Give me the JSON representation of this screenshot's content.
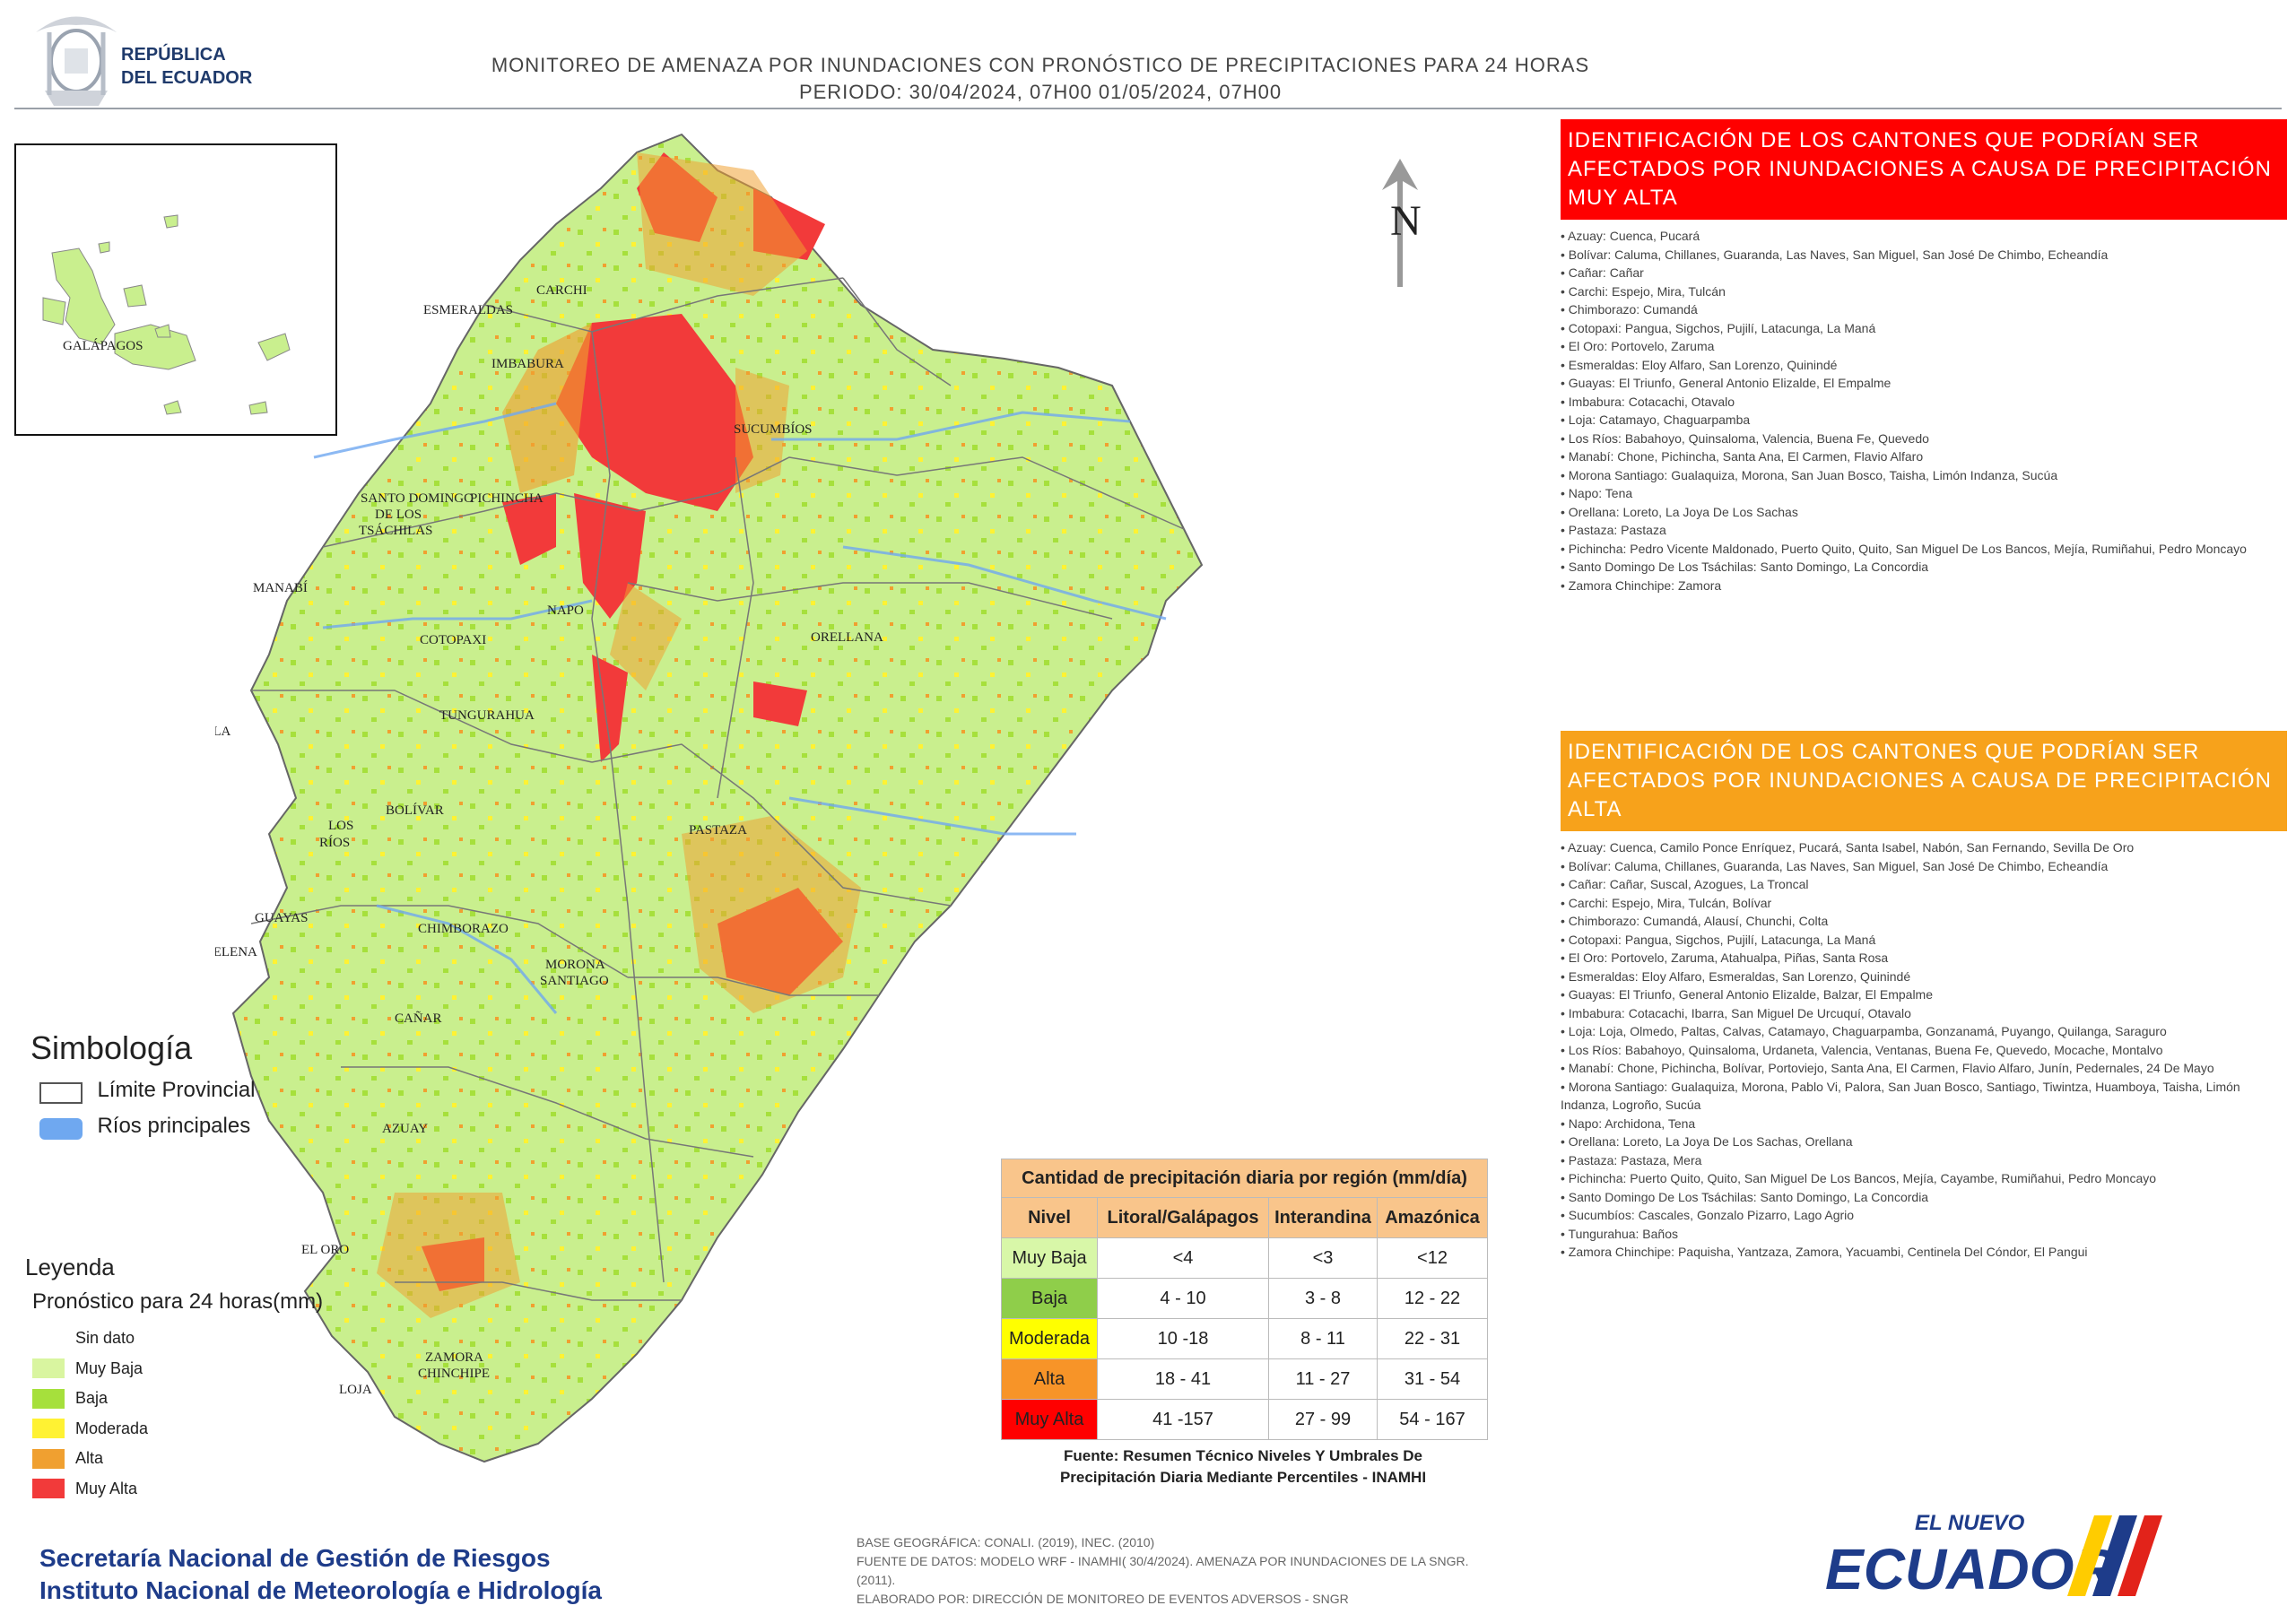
{
  "header": {
    "title_line1": "MONITOREO DE AMENAZA POR INUNDACIONES  CON PRONÓSTICO DE  PRECIPITACIONES PARA 24 HORAS",
    "title_line2": "PERIODO: 30/04/2024, 07H00 01/05/2024, 07H00",
    "logo_line1": "REPÚBLICA",
    "logo_line2": "DEL ECUADOR"
  },
  "map": {
    "north": "N",
    "inset_label": "GALÁPAGOS",
    "provinces": [
      "CARCHI",
      "ESMERALDAS",
      "IMBABURA",
      "SUCUMBÍOS",
      "SANTO DOMINGO",
      "DE LOS",
      "TSÁCHILAS",
      "PICHINCHA",
      "MANABÍ",
      "NAPO",
      "COTOPAXI",
      "ORELLANA",
      "ISLA",
      "TUNGURAHUA",
      "BOLÍVAR",
      "LOS",
      "RÍOS",
      "PASTAZA",
      "GUAYAS",
      "CHIMBORAZO",
      "SANTA ELENA",
      "MORONA",
      "SANTIAGO",
      "CAÑAR",
      "AZUAY",
      "EL ORO",
      "ZAMORA",
      "CHINCHIPE",
      "LOJA"
    ]
  },
  "panel_muy_alta": {
    "title": "IDENTIFICACIÓN DE LOS CANTONES QUE PODRÍAN SER AFECTADOS POR INUNDACIONES  A CAUSA DE PRECIPITACIÓN MUY ALTA",
    "color": "#ff0000",
    "items": [
      "• Azuay: Cuenca, Pucará",
      "• Bolívar: Caluma, Chillanes, Guaranda, Las Naves, San Miguel, San José De Chimbo, Echeandía",
      "• Cañar: Cañar",
      "• Carchi: Espejo, Mira, Tulcán",
      "• Chimborazo: Cumandá",
      "• Cotopaxi: Pangua, Sigchos, Pujilí, Latacunga, La Maná",
      "• El Oro: Portovelo, Zaruma",
      "• Esmeraldas: Eloy Alfaro, San Lorenzo, Quinindé",
      "• Guayas: El Triunfo, General Antonio Elizalde, El Empalme",
      "• Imbabura: Cotacachi, Otavalo",
      "• Loja: Catamayo, Chaguarpamba",
      "• Los Ríos: Babahoyo, Quinsaloma, Valencia, Buena Fe, Quevedo",
      "• Manabí: Chone, Pichincha, Santa Ana, El Carmen, Flavio Alfaro",
      "• Morona Santiago: Gualaquiza, Morona, San Juan Bosco, Taisha, Limón Indanza, Sucúa",
      "• Napo: Tena",
      "• Orellana: Loreto, La Joya De Los Sachas",
      "• Pastaza: Pastaza",
      "• Pichincha: Pedro Vicente Maldonado, Puerto Quito, Quito, San Miguel De Los Bancos, Mejía, Rumiñahui, Pedro Moncayo",
      "• Santo Domingo De Los Tsáchilas: Santo Domingo, La Concordia",
      "• Zamora Chinchipe: Zamora"
    ]
  },
  "panel_alta": {
    "title": "IDENTIFICACIÓN DE LOS CANTONES QUE  PODRÍAN SER AFECTADOS POR INUNDACIONES  A CAUSA DE PRECIPITACIÓN  ALTA",
    "color": "#f7a21b",
    "items": [
      "• Azuay: Cuenca, Camilo Ponce Enríquez, Pucará, Santa Isabel, Nabón, San Fernando, Sevilla De Oro",
      "• Bolívar: Caluma, Chillanes, Guaranda, Las Naves, San Miguel, San José De Chimbo, Echeandía",
      "• Cañar: Cañar, Suscal, Azogues, La Troncal",
      "• Carchi: Espejo, Mira, Tulcán, Bolívar",
      "• Chimborazo: Cumandá, Alausí, Chunchi, Colta",
      "• Cotopaxi: Pangua, Sigchos, Pujilí, Latacunga, La Maná",
      "• El Oro: Portovelo, Zaruma, Atahualpa, Piñas, Santa Rosa",
      "• Esmeraldas: Eloy Alfaro, Esmeraldas, San Lorenzo, Quinindé",
      "• Guayas: El Triunfo, General Antonio Elizalde, Balzar, El Empalme",
      "• Imbabura: Cotacachi, Ibarra, San Miguel De Urcuquí, Otavalo",
      "• Loja: Loja, Olmedo, Paltas, Calvas, Catamayo, Chaguarpamba, Gonzanamá, Puyango, Quilanga, Saraguro",
      "• Los Ríos: Babahoyo, Quinsaloma, Urdaneta, Valencia, Ventanas, Buena Fe, Quevedo, Mocache, Montalvo",
      "• Manabí: Chone, Pichincha, Bolívar, Portoviejo, Santa Ana, El Carmen, Flavio Alfaro, Junín, Pedernales, 24 De Mayo",
      "• Morona Santiago: Gualaquiza, Morona, Pablo Vi, Palora, San Juan Bosco, Santiago, Tiwintza, Huamboya, Taisha, Limón Indanza, Logroño, Sucúa",
      "• Napo: Archidona, Tena",
      "• Orellana: Loreto, La Joya De Los Sachas, Orellana",
      "• Pastaza: Pastaza, Mera",
      "• Pichincha: Puerto Quito, Quito, San Miguel De Los Bancos, Mejía, Cayambe, Rumiñahui, Pedro Moncayo",
      "• Santo Domingo De Los Tsáchilas: Santo Domingo, La Concordia",
      "• Sucumbíos: Cascales, Gonzalo Pizarro, Lago Agrio",
      "• Tungurahua: Baños",
      "• Zamora Chinchipe: Paquisha, Yantzaza, Zamora, Yacuambi, Centinela Del Cóndor, El Pangui"
    ]
  },
  "simbologia": {
    "title": "Simbología",
    "limite": "Límite Provincial",
    "rios": "Ríos principales",
    "rios_color": "#6fa8f0"
  },
  "leyenda": {
    "title": "Leyenda",
    "subtitle": "Pronóstico para 24 horas(mm)",
    "items": [
      {
        "label": "Sin dato",
        "color": "#ffffff"
      },
      {
        "label": "Muy Baja",
        "color": "#d9f5a0"
      },
      {
        "label": "Baja",
        "color": "#a6e03c"
      },
      {
        "label": "Moderada",
        "color": "#fff233"
      },
      {
        "label": "Alta",
        "color": "#f0a030"
      },
      {
        "label": "Muy Alta",
        "color": "#f23a3a"
      }
    ]
  },
  "precip_table": {
    "title": "Cantidad de precipitación diaria por región (mm/día)",
    "headers": [
      "Nivel",
      "Litoral/Galápagos",
      "Interandina",
      "Amazónica"
    ],
    "rows": [
      {
        "nivel": "Muy Baja",
        "color": "#d8f7a8",
        "lit": "<4",
        "int": "<3",
        "ama": "<12"
      },
      {
        "nivel": "Baja",
        "color": "#8fce4a",
        "lit": "4 - 10",
        "int": "3 - 8",
        "ama": "12 - 22"
      },
      {
        "nivel": "Moderada",
        "color": "#ffff00",
        "lit": "10 -18",
        "int": "8 - 11",
        "ama": "22 - 31"
      },
      {
        "nivel": "Alta",
        "color": "#f79428",
        "lit": "18 - 41",
        "int": "11 - 27",
        "ama": "31 - 54"
      },
      {
        "nivel": "Muy Alta",
        "color": "#ff0000",
        "lit": "41 -157",
        "int": "27 - 99",
        "ama": "54 - 167"
      }
    ],
    "source_line1": "Fuente: Resumen Técnico Niveles Y Umbrales De",
    "source_line2": "Precipitación Diaria Mediante Percentiles - INAMHI"
  },
  "footer": {
    "org1": "Secretaría Nacional de Gestión de Riesgos",
    "org2": "Instituto Nacional de Meteorología e Hidrología",
    "credit1": "BASE GEOGRÁFICA: CONALI. (2019), INEC. (2010)",
    "credit2": "FUENTE DE DATOS: MODELO WRF - INAMHI( 30/4/2024).  AMENAZA POR INUNDACIONES DE LA SNGR. (2011).",
    "credit3": "ELABORADO POR: DIRECCIÓN DE MONITOREO DE EVENTOS ADVERSOS - SNGR",
    "brand_top": "EL NUEVO",
    "brand_main": "ECUADOR"
  }
}
